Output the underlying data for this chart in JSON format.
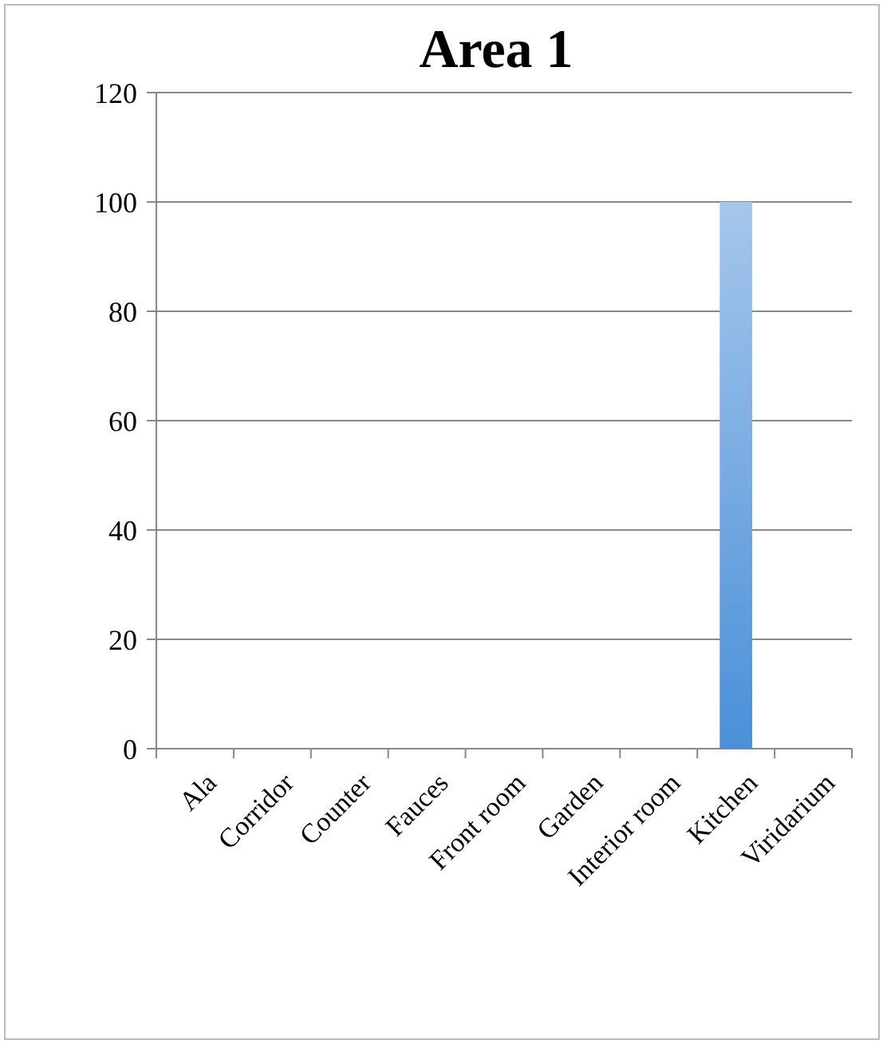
{
  "chart_data": {
    "type": "bar",
    "title": "Area 1",
    "categories": [
      "Ala",
      "Corridor",
      "Counter",
      "Fauces",
      "Front room",
      "Garden",
      "Interior room",
      "Kitchen",
      "Viridarium"
    ],
    "values": [
      0,
      0,
      0,
      0,
      0,
      0,
      0,
      100,
      0
    ],
    "color": "#4a8fd8",
    "ylim": [
      0,
      120
    ],
    "yticks": [
      0,
      20,
      40,
      60,
      80,
      100,
      120
    ],
    "grid": "y"
  }
}
